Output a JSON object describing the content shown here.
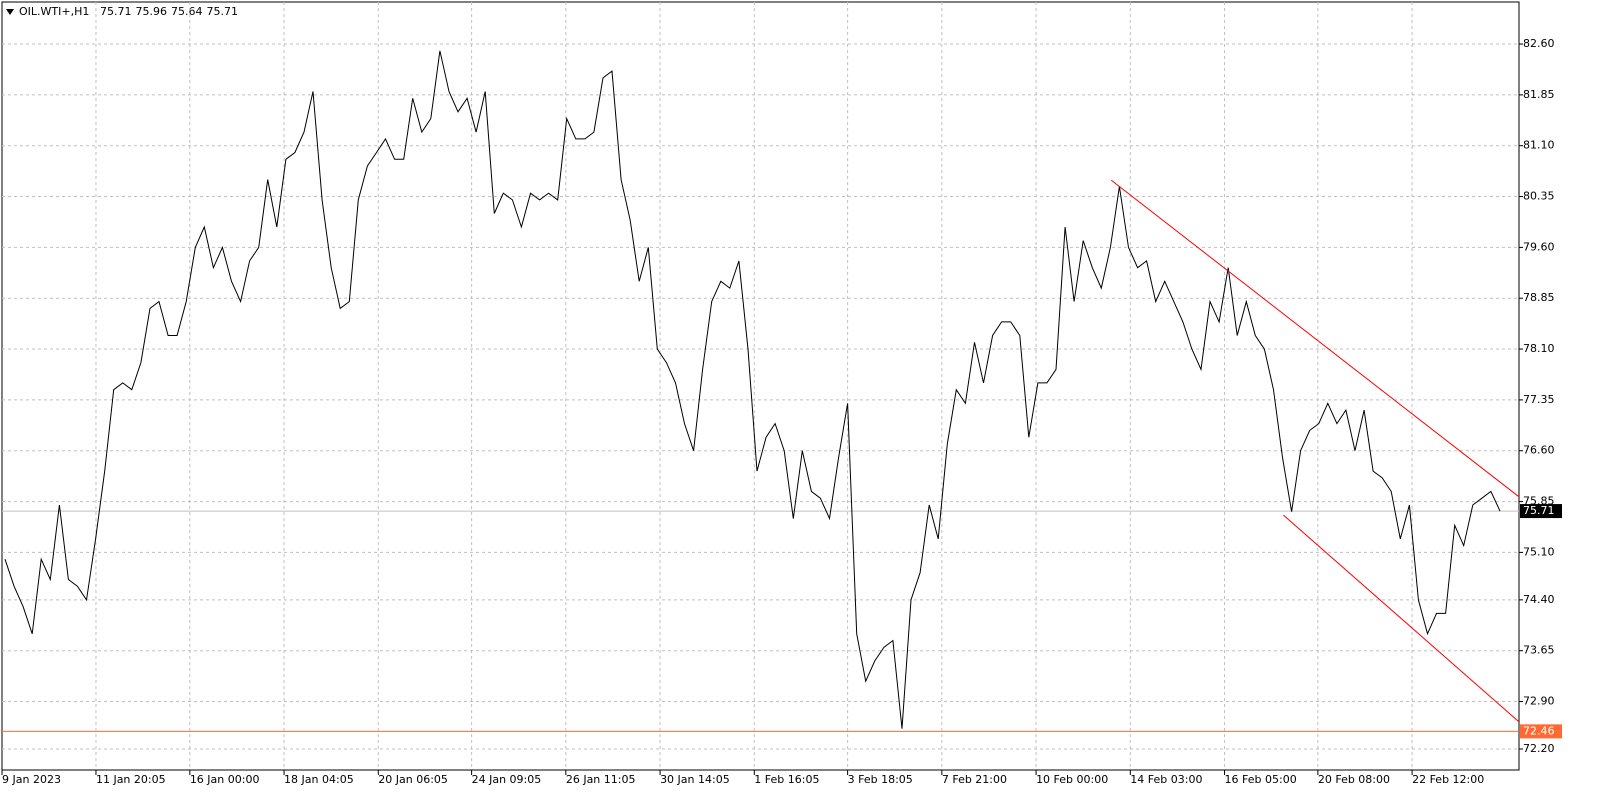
{
  "chart_data": {
    "type": "line",
    "symbol": "OIL.WTI+,H1",
    "ohlc": [
      75.71,
      75.96,
      75.64,
      75.71
    ],
    "series": [
      {
        "color": "#000000",
        "values": [
          75.0,
          74.6,
          74.3,
          73.9,
          75.0,
          74.7,
          75.8,
          74.7,
          74.6,
          74.4,
          75.3,
          76.3,
          77.5,
          77.6,
          77.5,
          77.9,
          78.7,
          78.8,
          78.3,
          78.3,
          78.8,
          79.6,
          79.9,
          79.3,
          79.6,
          79.1,
          78.8,
          79.4,
          79.6,
          80.6,
          79.9,
          80.9,
          81.0,
          81.3,
          81.9,
          80.3,
          79.3,
          78.7,
          78.8,
          80.3,
          80.8,
          81.0,
          81.2,
          80.9,
          80.9,
          81.8,
          81.3,
          81.5,
          82.5,
          81.9,
          81.6,
          81.8,
          81.3,
          81.9,
          80.1,
          80.4,
          80.3,
          79.9,
          80.4,
          80.3,
          80.4,
          80.3,
          81.5,
          81.2,
          81.2,
          81.3,
          82.1,
          82.2,
          80.6,
          80.0,
          79.1,
          79.6,
          78.1,
          77.9,
          77.6,
          77.0,
          76.6,
          77.8,
          78.8,
          79.1,
          79.0,
          79.4,
          78.1,
          76.3,
          76.8,
          77.0,
          76.6,
          75.6,
          76.6,
          76.0,
          75.9,
          75.6,
          76.5,
          77.3,
          73.9,
          73.2,
          73.5,
          73.7,
          73.8,
          72.5,
          74.4,
          74.8,
          75.8,
          75.3,
          76.7,
          77.5,
          77.3,
          78.2,
          77.6,
          78.3,
          78.5,
          78.5,
          78.3,
          76.8,
          77.6,
          77.6,
          77.8,
          79.9,
          78.8,
          79.7,
          79.3,
          79.0,
          79.6,
          80.5,
          79.6,
          79.3,
          79.4,
          78.8,
          79.1,
          78.8,
          78.5,
          78.1,
          77.8,
          78.8,
          78.5,
          79.3,
          78.3,
          78.8,
          78.3,
          78.1,
          77.5,
          76.5,
          75.7,
          76.6,
          76.9,
          77.0,
          77.3,
          77.0,
          77.2,
          76.6,
          77.2,
          76.3,
          76.2,
          76.0,
          75.3,
          75.8,
          74.4,
          73.9,
          74.2,
          74.2,
          75.5,
          75.2,
          75.8,
          75.9,
          76.0,
          75.71
        ]
      }
    ],
    "xlim": [
      -0.33,
      167.1
    ],
    "xticks": [
      {
        "value": -0.33,
        "label": "9 Jan 2023"
      },
      {
        "value": 10.04,
        "label": "11 Jan 20:05"
      },
      {
        "value": 20.4,
        "label": "16 Jan 00:00"
      },
      {
        "value": 30.8,
        "label": "18 Jan 04:05"
      },
      {
        "value": 41.2,
        "label": "20 Jan 06:05"
      },
      {
        "value": 51.5,
        "label": "24 Jan 09:05"
      },
      {
        "value": 61.9,
        "label": "26 Jan 11:05"
      },
      {
        "value": 72.3,
        "label": "30 Jan 14:05"
      },
      {
        "value": 82.7,
        "label": "1 Feb 16:05"
      },
      {
        "value": 93.0,
        "label": "3 Feb 18:05"
      },
      {
        "value": 103.4,
        "label": "7 Feb 21:00"
      },
      {
        "value": 113.8,
        "label": "10 Feb 00:00"
      },
      {
        "value": 124.2,
        "label": "14 Feb 03:00"
      },
      {
        "value": 134.6,
        "label": "16 Feb 05:00"
      },
      {
        "value": 144.9,
        "label": "20 Feb 08:00"
      },
      {
        "value": 155.3,
        "label": "22 Feb 12:00"
      }
    ],
    "ylim": [
      71.89,
      83.22
    ],
    "yticks": [
      {
        "value": 82.6,
        "label": "82.60"
      },
      81.85,
      {
        "value": 81.1,
        "label": "81.10"
      },
      80.35,
      {
        "value": 79.6,
        "label": "79.60"
      },
      78.85,
      {
        "value": 78.1,
        "label": "78.10"
      },
      77.35,
      {
        "value": 76.6,
        "label": "76.60"
      },
      75.85,
      {
        "value": 75.1,
        "label": "75.10"
      },
      {
        "value": 74.4,
        "label": "74.40"
      },
      73.65,
      {
        "value": 72.9,
        "label": "72.90"
      },
      {
        "value": 72.2,
        "label": "72.20"
      }
    ],
    "grid": true,
    "levels": [
      {
        "value": 75.71,
        "color": "#c0c0c0",
        "label_color": "#000000"
      },
      {
        "value": 72.46,
        "color": "#ff6a33",
        "label_color": "#ff6a33"
      }
    ],
    "trendlines": [
      {
        "x": [
          122.1,
          167.1
        ],
        "y": [
          80.59,
          75.92
        ],
        "color": "#ff0000"
      },
      {
        "x": [
          141.1,
          167.1
        ],
        "y": [
          75.65,
          72.6
        ],
        "color": "#ff0000"
      }
    ]
  }
}
